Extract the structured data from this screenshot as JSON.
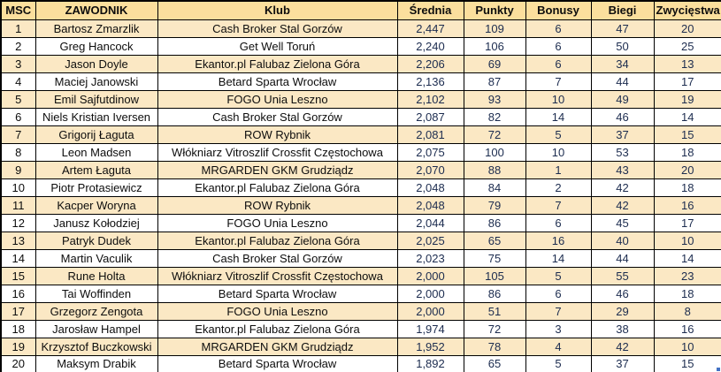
{
  "colors": {
    "header_bg": "#fbdf9d",
    "alt_row_bg": "#fbe8c4",
    "grid": "#000000",
    "number_text": "#1c2c4f",
    "fill_handle": "#4472c4"
  },
  "table": {
    "columns": [
      "MSC",
      "ZAWODNIK",
      "Klub",
      "Średnia",
      "Punkty",
      "Bonusy",
      "Biegi",
      "Zwycięstwa"
    ],
    "fields": [
      "msc",
      "zawodnik",
      "klub",
      "srednia",
      "punkty",
      "bonusy",
      "biegi",
      "zwyciestwa"
    ],
    "rows": [
      {
        "msc": "1",
        "zawodnik": "Bartosz Zmarzlik",
        "klub": "Cash Broker Stal Gorzów",
        "srednia": "2,447",
        "punkty": "109",
        "bonusy": "6",
        "biegi": "47",
        "zwyciestwa": "20"
      },
      {
        "msc": "2",
        "zawodnik": "Greg Hancock",
        "klub": "Get Well Toruń",
        "srednia": "2,240",
        "punkty": "106",
        "bonusy": "6",
        "biegi": "50",
        "zwyciestwa": "25"
      },
      {
        "msc": "3",
        "zawodnik": "Jason Doyle",
        "klub": "Ekantor.pl Falubaz Zielona Góra",
        "srednia": "2,206",
        "punkty": "69",
        "bonusy": "6",
        "biegi": "34",
        "zwyciestwa": "13"
      },
      {
        "msc": "4",
        "zawodnik": "Maciej Janowski",
        "klub": "Betard Sparta Wrocław",
        "srednia": "2,136",
        "punkty": "87",
        "bonusy": "7",
        "biegi": "44",
        "zwyciestwa": "17"
      },
      {
        "msc": "5",
        "zawodnik": "Emil Sajfutdinow",
        "klub": "FOGO Unia Leszno",
        "srednia": "2,102",
        "punkty": "93",
        "bonusy": "10",
        "biegi": "49",
        "zwyciestwa": "19"
      },
      {
        "msc": "6",
        "zawodnik": "Niels Kristian Iversen",
        "klub": "Cash Broker Stal Gorzów",
        "srednia": "2,087",
        "punkty": "82",
        "bonusy": "14",
        "biegi": "46",
        "zwyciestwa": "14"
      },
      {
        "msc": "7",
        "zawodnik": "Grigorij Łaguta",
        "klub": "ROW Rybnik",
        "srednia": "2,081",
        "punkty": "72",
        "bonusy": "5",
        "biegi": "37",
        "zwyciestwa": "15"
      },
      {
        "msc": "8",
        "zawodnik": "Leon Madsen",
        "klub": "Włókniarz Vitroszlif Crossfit Częstochowa",
        "srednia": "2,075",
        "punkty": "100",
        "bonusy": "10",
        "biegi": "53",
        "zwyciestwa": "18"
      },
      {
        "msc": "9",
        "zawodnik": "Artem Łaguta",
        "klub": "MRGARDEN GKM Grudziądz",
        "srednia": "2,070",
        "punkty": "88",
        "bonusy": "1",
        "biegi": "43",
        "zwyciestwa": "20"
      },
      {
        "msc": "10",
        "zawodnik": "Piotr Protasiewicz",
        "klub": "Ekantor.pl Falubaz Zielona Góra",
        "srednia": "2,048",
        "punkty": "84",
        "bonusy": "2",
        "biegi": "42",
        "zwyciestwa": "18"
      },
      {
        "msc": "11",
        "zawodnik": "Kacper Woryna",
        "klub": "ROW Rybnik",
        "srednia": "2,048",
        "punkty": "79",
        "bonusy": "7",
        "biegi": "42",
        "zwyciestwa": "16"
      },
      {
        "msc": "12",
        "zawodnik": "Janusz Kołodziej",
        "klub": "FOGO Unia Leszno",
        "srednia": "2,044",
        "punkty": "86",
        "bonusy": "6",
        "biegi": "45",
        "zwyciestwa": "17"
      },
      {
        "msc": "13",
        "zawodnik": "Patryk Dudek",
        "klub": "Ekantor.pl Falubaz Zielona Góra",
        "srednia": "2,025",
        "punkty": "65",
        "bonusy": "16",
        "biegi": "40",
        "zwyciestwa": "10"
      },
      {
        "msc": "14",
        "zawodnik": "Martin Vaculik",
        "klub": "Cash Broker Stal Gorzów",
        "srednia": "2,023",
        "punkty": "75",
        "bonusy": "14",
        "biegi": "44",
        "zwyciestwa": "14"
      },
      {
        "msc": "15",
        "zawodnik": "Rune Holta",
        "klub": "Włókniarz Vitroszlif Crossfit Częstochowa",
        "srednia": "2,000",
        "punkty": "105",
        "bonusy": "5",
        "biegi": "55",
        "zwyciestwa": "23"
      },
      {
        "msc": "16",
        "zawodnik": "Tai Woffinden",
        "klub": "Betard Sparta Wrocław",
        "srednia": "2,000",
        "punkty": "86",
        "bonusy": "6",
        "biegi": "46",
        "zwyciestwa": "18"
      },
      {
        "msc": "17",
        "zawodnik": "Grzegorz Zengota",
        "klub": "FOGO Unia Leszno",
        "srednia": "2,000",
        "punkty": "51",
        "bonusy": "7",
        "biegi": "29",
        "zwyciestwa": "8"
      },
      {
        "msc": "18",
        "zawodnik": "Jarosław Hampel",
        "klub": "Ekantor.pl Falubaz Zielona Góra",
        "srednia": "1,974",
        "punkty": "72",
        "bonusy": "3",
        "biegi": "38",
        "zwyciestwa": "16"
      },
      {
        "msc": "19",
        "zawodnik": "Krzysztof Buczkowski",
        "klub": "MRGARDEN GKM Grudziądz",
        "srednia": "1,952",
        "punkty": "78",
        "bonusy": "4",
        "biegi": "42",
        "zwyciestwa": "10"
      },
      {
        "msc": "20",
        "zawodnik": "Maksym Drabik",
        "klub": "Betard Sparta Wrocław",
        "srednia": "1,892",
        "punkty": "65",
        "bonusy": "5",
        "biegi": "37",
        "zwyciestwa": "15"
      }
    ]
  }
}
